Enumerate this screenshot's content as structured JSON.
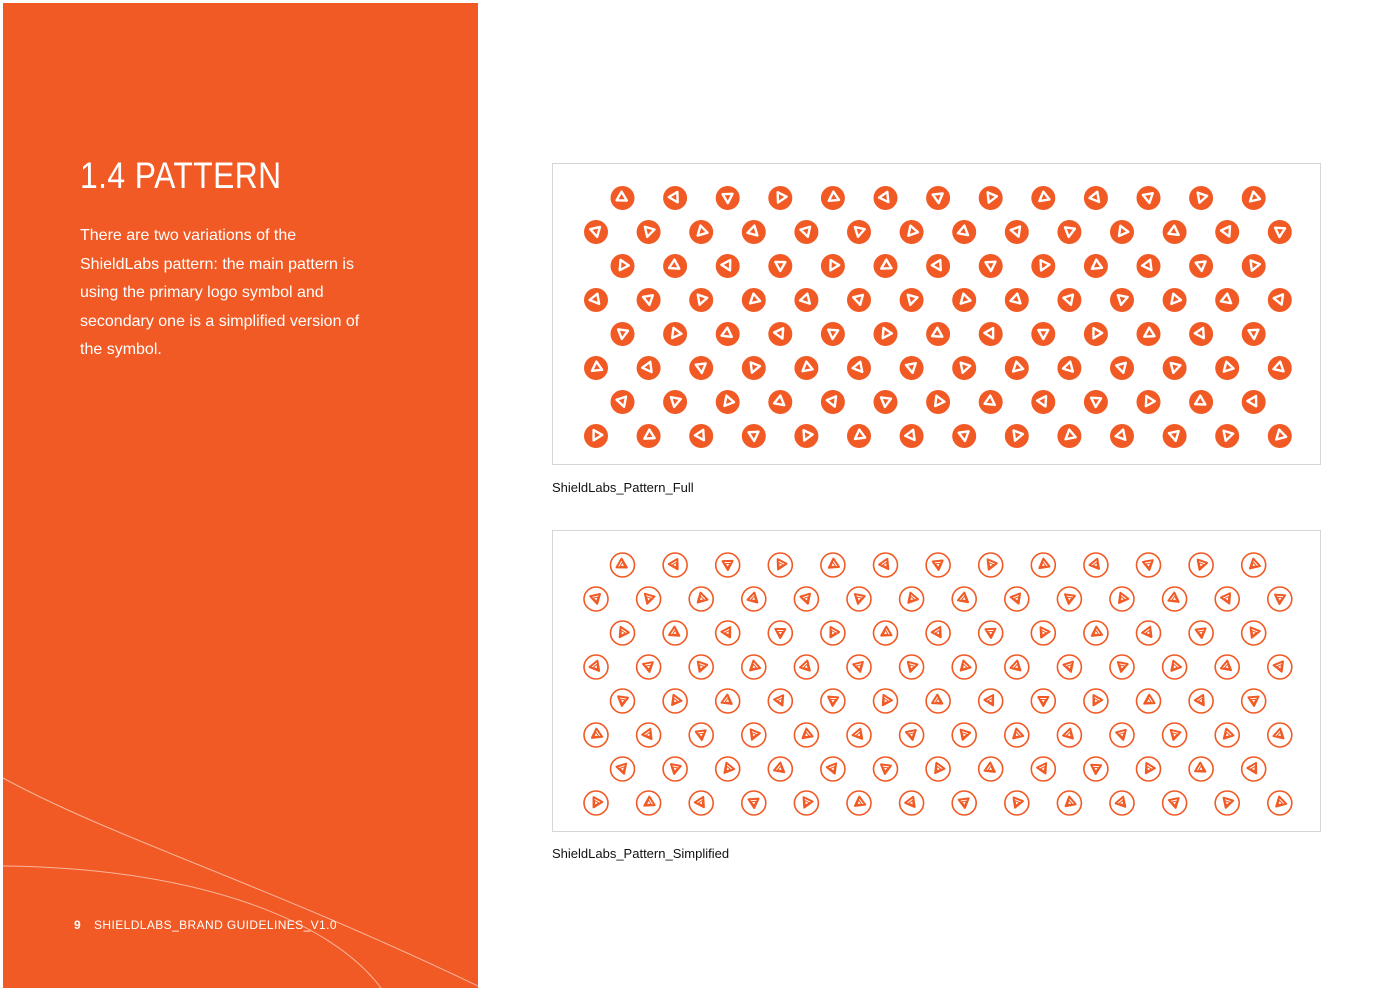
{
  "section": {
    "title": "1.4  PATTERN",
    "description": "There are two variations of the ShieldLabs pattern: the main pattern is using the primary logo symbol and secondary one is a simplified version of the symbol."
  },
  "footer": {
    "page_number": "9",
    "document_label": "SHIELDLABS_BRAND GUIDELINES_V1.0"
  },
  "patterns": [
    {
      "caption": "ShieldLabs_Pattern_Full",
      "style": "filled",
      "icon": "shieldlabs-logo-symbol"
    },
    {
      "caption": "ShieldLabs_Pattern_Simplified",
      "style": "outline",
      "icon": "shieldlabs-logo-symbol-simplified"
    }
  ],
  "colors": {
    "brand_orange": "#F15A24",
    "white": "#FFFFFF",
    "border_gray": "#D6D6D6"
  }
}
